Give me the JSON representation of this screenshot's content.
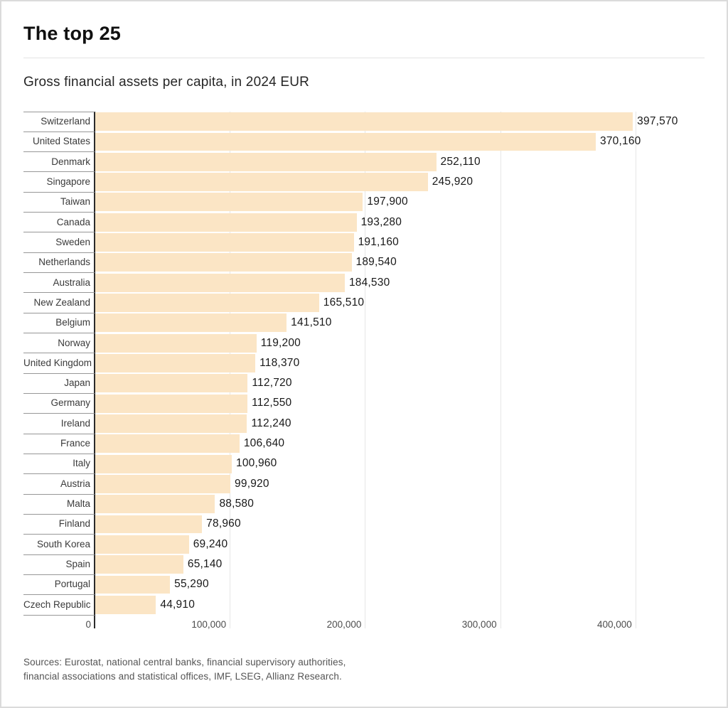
{
  "header": {
    "title": "The top 25"
  },
  "footer": {
    "source_lines": [
      "Sources: Eurostat, national central banks, financial supervisory authorities,",
      "financial associations and statistical offices, IMF, LSEG, Allianz Research."
    ]
  },
  "chart_data": {
    "type": "bar",
    "orientation": "horizontal",
    "title": "Gross financial assets per capita, in 2024 EUR",
    "categories": [
      "Switzerland",
      "United States",
      "Denmark",
      "Singapore",
      "Taiwan",
      "Canada",
      "Sweden",
      "Netherlands",
      "Australia",
      "New Zealand",
      "Belgium",
      "Norway",
      "United Kingdom",
      "Japan",
      "Germany",
      "Ireland",
      "France",
      "Italy",
      "Austria",
      "Malta",
      "Finland",
      "South Korea",
      "Spain",
      "Portugal",
      "Czech Republic"
    ],
    "values": [
      397570,
      370160,
      252110,
      245920,
      197900,
      193280,
      191160,
      189540,
      184530,
      165510,
      141510,
      119200,
      118370,
      112720,
      112550,
      112240,
      106640,
      100960,
      99920,
      88580,
      78960,
      69240,
      65140,
      55290,
      44910
    ],
    "value_labels": [
      "397,570",
      "370,160",
      "252,110",
      "245,920",
      "197,900",
      "193,280",
      "191,160",
      "189,540",
      "184,530",
      "165,510",
      "141,510",
      "119,200",
      "118,370",
      "112,720",
      "112,550",
      "112,240",
      "106,640",
      "100,960",
      "99,920",
      "88,580",
      "78,960",
      "69,240",
      "65,140",
      "55,290",
      "44,910"
    ],
    "xlabel": "",
    "ylabel": "",
    "xlim": [
      0,
      400000
    ],
    "x_ticks": [
      {
        "value": 0,
        "label": "0"
      },
      {
        "value": 100000,
        "label": "100,000"
      },
      {
        "value": 200000,
        "label": "200,000"
      },
      {
        "value": 300000,
        "label": "300,000"
      },
      {
        "value": 400000,
        "label": "400,000"
      }
    ],
    "grid": "vertical",
    "legend": "none",
    "bar_color": "#fbe5c5",
    "axis_line_color": "#2b2b2b",
    "gridline_color": "#e6e6e6"
  }
}
